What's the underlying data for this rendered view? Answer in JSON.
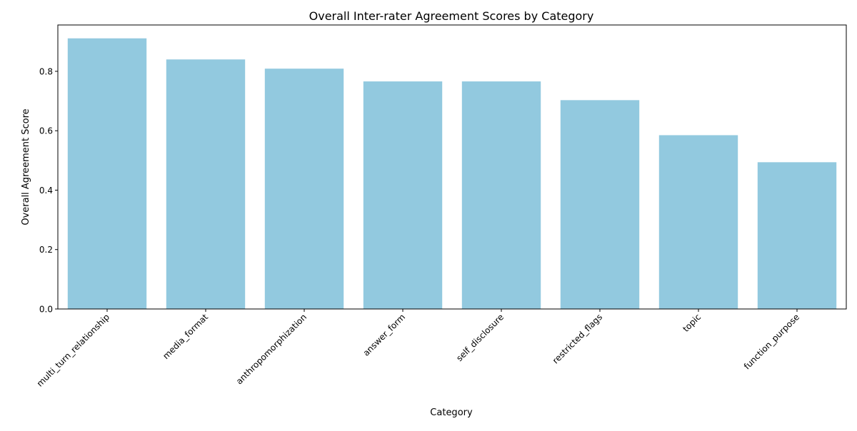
{
  "chart_data": {
    "type": "bar",
    "title": "Overall Inter-rater Agreement Scores by Category",
    "xlabel": "Category",
    "ylabel": "Overall Agreement Score",
    "categories": [
      "multi_turn_relationship",
      "media_format",
      "anthropomorphization",
      "answer_form",
      "self_disclosure",
      "restricted_flags",
      "topic",
      "function_purpose"
    ],
    "values": [
      0.911,
      0.84,
      0.809,
      0.766,
      0.766,
      0.703,
      0.585,
      0.494
    ],
    "ylim": [
      0,
      0.956
    ],
    "yticks": [
      0.0,
      0.2,
      0.4,
      0.6,
      0.8
    ],
    "ytick_labels": [
      "0.0",
      "0.2",
      "0.4",
      "0.6",
      "0.8"
    ],
    "bar_color": "#92c9df",
    "grid": false,
    "legend": "none"
  }
}
